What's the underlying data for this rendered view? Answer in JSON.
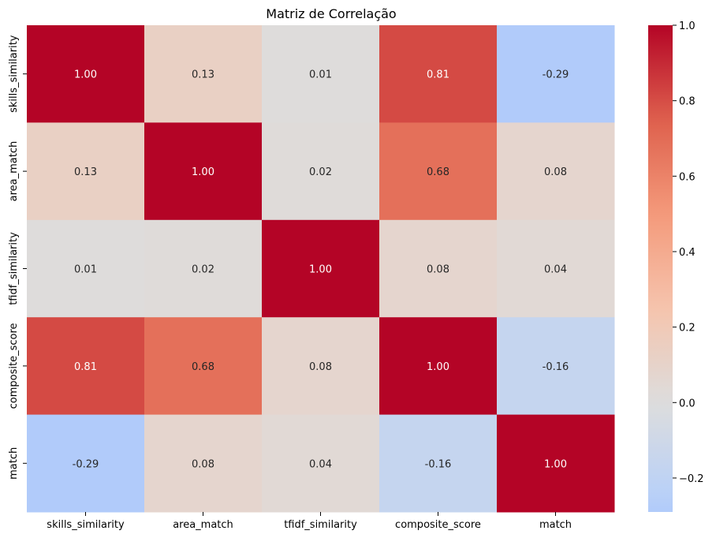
{
  "chart_data": {
    "type": "heatmap",
    "title": "Matriz de Correlação",
    "row_labels": [
      "skills_similarity",
      "area_match",
      "tfidf_similarity",
      "composite_score",
      "match"
    ],
    "col_labels": [
      "skills_similarity",
      "area_match",
      "tfidf_similarity",
      "composite_score",
      "match"
    ],
    "values": [
      [
        1.0,
        0.13,
        0.01,
        0.81,
        -0.29
      ],
      [
        0.13,
        1.0,
        0.02,
        0.68,
        0.08
      ],
      [
        0.01,
        0.02,
        1.0,
        0.08,
        0.04
      ],
      [
        0.81,
        0.68,
        0.08,
        1.0,
        -0.16
      ],
      [
        -0.29,
        0.08,
        0.04,
        -0.16,
        1.0
      ]
    ],
    "annotations": [
      [
        "1.00",
        "0.13",
        "0.01",
        "0.81",
        "-0.29"
      ],
      [
        "0.13",
        "1.00",
        "0.02",
        "0.68",
        "0.08"
      ],
      [
        "0.01",
        "0.02",
        "1.00",
        "0.08",
        "0.04"
      ],
      [
        "0.81",
        "0.68",
        "0.08",
        "1.00",
        "-0.16"
      ],
      [
        "-0.29",
        "0.08",
        "0.04",
        "-0.16",
        "1.00"
      ]
    ],
    "colormap": "coolwarm",
    "center": 0,
    "vmin": -0.29,
    "vmax": 1.0,
    "colorbar": {
      "ticks": [
        -0.2,
        0.0,
        0.2,
        0.4,
        0.6,
        0.8,
        1.0
      ],
      "tick_labels": [
        "−0.2",
        "0.0",
        "0.2",
        "0.4",
        "0.6",
        "0.8",
        "1.0"
      ]
    }
  }
}
